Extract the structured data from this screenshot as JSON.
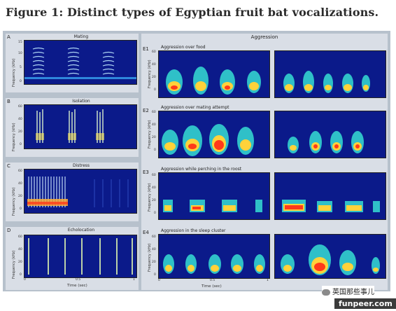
{
  "figure_title": "Figure 1: Distinct types of Egyptian fruit bat vocalizations.",
  "left_panels": [
    {
      "label": "A",
      "title": "Mating",
      "yticks": [
        "15",
        "10",
        "5",
        "0"
      ]
    },
    {
      "label": "B",
      "title": "Isolation",
      "yticks": [
        "60",
        "40",
        "20",
        "0"
      ]
    },
    {
      "label": "C",
      "title": "Distress",
      "yticks": [
        "60",
        "40",
        "20",
        "0"
      ]
    },
    {
      "label": "D",
      "title": "Echolocation",
      "yticks": [
        "60",
        "40",
        "20",
        "0"
      ]
    }
  ],
  "y_axis_label": "Frequency (kHz)",
  "x_axis_label": "Time (sec)",
  "x_ticks": [
    "0",
    "0.5",
    "1"
  ],
  "right_group_title": "Aggression",
  "right_panels": [
    {
      "label": "E1",
      "title": "Aggression over food",
      "yticks": [
        "60",
        "40",
        "20",
        "0"
      ]
    },
    {
      "label": "E2",
      "title": "Aggression over mating attempt",
      "yticks": [
        "60",
        "40",
        "20",
        "0"
      ]
    },
    {
      "label": "E3",
      "title": "Aggression while perching in the roost",
      "yticks": [
        "60",
        "40",
        "20",
        "0"
      ]
    },
    {
      "label": "E4",
      "title": "Aggression in the sleep cluster",
      "yticks": [
        "60",
        "40",
        "20",
        "0"
      ]
    }
  ],
  "watermark": {
    "tag": "英国那些事儿",
    "url": "funpeer.com"
  }
}
